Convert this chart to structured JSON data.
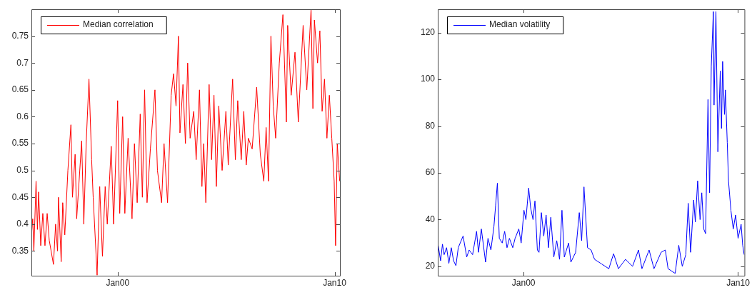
{
  "chart_data": [
    {
      "type": "line",
      "xlim": [
        "1996-01-10",
        "2010-04-01"
      ],
      "xticks": [
        {
          "value": "2000-01-01",
          "label": "Jan00"
        },
        {
          "value": "2010-01-01",
          "label": "Jan10"
        }
      ],
      "ylim": [
        0.304,
        0.8
      ],
      "yticks": [
        0.35,
        0.4,
        0.45,
        0.5,
        0.55,
        0.6,
        0.65,
        0.7,
        0.75
      ],
      "grid": false,
      "legend": "top left",
      "marker": "none",
      "line_style": "solid",
      "x": [
        "1996-01-10",
        "1996-02-01",
        "1996-02-20",
        "1996-03-28",
        "1996-04-20",
        "1996-05-10",
        "1996-06-15",
        "1996-07-20",
        "1996-08-25",
        "1996-10-01",
        "1996-11-05",
        "1997-01-15",
        "1997-02-20",
        "1997-03-25",
        "1997-04-10",
        "1997-05-25",
        "1997-06-20",
        "1997-07-25",
        "1997-09-15",
        "1997-11-05",
        "1997-12-01",
        "1998-01-15",
        "1998-02-10",
        "1998-05-05",
        "1998-06-10",
        "1998-07-20",
        "1998-09-05",
        "1998-10-20",
        "1998-11-15",
        "1999-01-20",
        "1999-03-05",
        "1999-04-20",
        "1999-06-05",
        "1999-07-10",
        "1999-09-15",
        "1999-10-25",
        "2000-01-01",
        "2000-02-05",
        "2000-03-25",
        "2000-05-01",
        "2000-06-25",
        "2000-08-30",
        "2000-10-10",
        "2000-11-25",
        "2001-01-15",
        "2001-02-20",
        "2001-03-30",
        "2001-05-10",
        "2001-07-05",
        "2001-09-20",
        "2001-11-01",
        "2002-01-10",
        "2002-02-20",
        "2002-04-20",
        "2002-06-20",
        "2002-07-30",
        "2002-09-10",
        "2002-10-20",
        "2002-11-15",
        "2003-01-05",
        "2003-02-15",
        "2003-03-25",
        "2003-05-05",
        "2003-07-05",
        "2003-08-15",
        "2003-10-10",
        "2003-11-20",
        "2003-12-20",
        "2004-01-25",
        "2004-03-20",
        "2004-05-01",
        "2004-06-10",
        "2004-07-20",
        "2004-08-30",
        "2004-10-25",
        "2004-12-28",
        "2005-02-05",
        "2005-04-20",
        "2005-06-05",
        "2005-07-15",
        "2005-09-12",
        "2005-10-25",
        "2005-12-05",
        "2006-01-10",
        "2006-03-15",
        "2006-05-30",
        "2006-07-30",
        "2006-09-27",
        "2006-11-05",
        "2006-12-15",
        "2007-01-25",
        "2007-03-05",
        "2007-04-15",
        "2007-06-15",
        "2007-08-15",
        "2007-10-12",
        "2007-11-03",
        "2008-01-01",
        "2008-03-05",
        "2008-04-30",
        "2008-07-20",
        "2008-09-20",
        "2008-12-01",
        "2009-01-01",
        "2009-01-26",
        "2009-03-20",
        "2009-04-28",
        "2009-06-05",
        "2009-07-15",
        "2009-08-25",
        "2009-10-05",
        "2009-11-15",
        "2009-12-25",
        "2010-01-18",
        "2010-02-15",
        "2010-03-10",
        "2010-03-28"
      ],
      "series": [
        {
          "name": "Median correlation",
          "color": "#ff0000",
          "values": [
            0.38,
            0.41,
            0.35,
            0.48,
            0.39,
            0.46,
            0.36,
            0.42,
            0.36,
            0.42,
            0.37,
            0.325,
            0.4,
            0.35,
            0.45,
            0.33,
            0.44,
            0.38,
            0.5,
            0.585,
            0.45,
            0.53,
            0.41,
            0.555,
            0.4,
            0.55,
            0.67,
            0.52,
            0.45,
            0.305,
            0.47,
            0.34,
            0.47,
            0.4,
            0.545,
            0.4,
            0.63,
            0.42,
            0.6,
            0.42,
            0.56,
            0.41,
            0.55,
            0.44,
            0.605,
            0.45,
            0.65,
            0.44,
            0.54,
            0.65,
            0.5,
            0.44,
            0.55,
            0.44,
            0.64,
            0.68,
            0.62,
            0.75,
            0.57,
            0.66,
            0.55,
            0.7,
            0.56,
            0.61,
            0.52,
            0.65,
            0.47,
            0.55,
            0.44,
            0.66,
            0.52,
            0.64,
            0.47,
            0.62,
            0.5,
            0.61,
            0.51,
            0.67,
            0.52,
            0.63,
            0.52,
            0.61,
            0.51,
            0.56,
            0.54,
            0.655,
            0.53,
            0.48,
            0.58,
            0.48,
            0.75,
            0.62,
            0.56,
            0.7,
            0.79,
            0.59,
            0.77,
            0.64,
            0.72,
            0.59,
            0.77,
            0.65,
            0.8,
            0.615,
            0.78,
            0.7,
            0.76,
            0.61,
            0.67,
            0.56,
            0.64,
            0.56,
            0.48,
            0.36,
            0.55,
            0.51,
            0.48
          ]
        }
      ]
    },
    {
      "type": "line",
      "xlim": [
        "1996-01-01",
        "2010-04-20"
      ],
      "xticks": [
        {
          "value": "2000-01-01",
          "label": "Jan00"
        },
        {
          "value": "2010-01-01",
          "label": "Jan10"
        }
      ],
      "ylim": [
        16,
        130
      ],
      "yticks": [
        20,
        40,
        60,
        80,
        100,
        120
      ],
      "grid": false,
      "legend": "top left",
      "marker": "none",
      "line_style": "solid",
      "x": [
        "1996-01-08",
        "1996-02-18",
        "1996-03-21",
        "1996-04-18",
        "1996-05-30",
        "1996-07-08",
        "1996-08-18",
        "1996-09-26",
        "1996-11-05",
        "1996-12-15",
        "1997-03-07",
        "1997-05-08",
        "1997-06-18",
        "1997-08-16",
        "1997-10-23",
        "1997-11-24",
        "1998-01-12",
        "1998-03-25",
        "1998-05-05",
        "1998-06-24",
        "1998-08-14",
        "1998-09-12",
        "1998-10-12",
        "1998-11-14",
        "1999-01-03",
        "1999-02-13",
        "1999-03-25",
        "1999-05-05",
        "1999-07-01",
        "1999-08-10",
        "1999-10-12",
        "1999-11-21",
        "2000-01-08",
        "2000-02-10",
        "2000-03-28",
        "2000-05-01",
        "2000-06-10",
        "2000-07-13",
        "2000-08-23",
        "2000-09-20",
        "2000-10-30",
        "2000-12-10",
        "2001-01-19",
        "2001-02-28",
        "2001-04-09",
        "2001-05-30",
        "2001-07-19",
        "2001-09-05",
        "2001-10-16",
        "2001-11-25",
        "2002-02-06",
        "2002-03-17",
        "2002-06-06",
        "2002-08-07",
        "2002-09-16",
        "2002-10-26",
        "2002-12-25",
        "2003-02-24",
        "2003-04-24",
        "2003-08-24",
        "2003-12-23",
        "2004-03-13",
        "2004-06-03",
        "2004-10-01",
        "2005-01-30",
        "2005-05-11",
        "2005-07-09",
        "2005-11-08",
        "2006-01-30",
        "2006-05-31",
        "2006-08-11",
        "2006-09-27",
        "2007-01-26",
        "2007-03-28",
        "2007-05-27",
        "2007-07-26",
        "2007-09-05",
        "2007-10-16",
        "2007-12-07",
        "2008-01-04",
        "2008-02-13",
        "2008-03-25",
        "2008-04-23",
        "2008-05-26",
        "2008-06-27",
        "2008-08-07",
        "2008-09-03",
        "2008-10-02",
        "2008-11-06",
        "2008-11-18",
        "2008-12-20",
        "2009-01-22",
        "2009-03-04",
        "2009-03-25",
        "2009-04-13",
        "2009-05-15",
        "2009-05-30",
        "2009-07-01",
        "2009-07-22",
        "2009-09-01",
        "2009-10-11",
        "2009-11-20",
        "2010-01-01",
        "2010-02-22",
        "2010-03-21",
        "2010-04-15"
      ],
      "series": [
        {
          "name": "Median volatility",
          "color": "#0000ff",
          "values": [
            29,
            22.4,
            29.5,
            25,
            28,
            21.3,
            28,
            22.4,
            20.3,
            28,
            33,
            24,
            27,
            25,
            35,
            26,
            36,
            21.8,
            32,
            27,
            37,
            46,
            55.6,
            32,
            30,
            35,
            28,
            32,
            28,
            32,
            36,
            30,
            44,
            40,
            53.5,
            45,
            40,
            48,
            27,
            26,
            43,
            33,
            42,
            28,
            41,
            24,
            31,
            23,
            44,
            24,
            30,
            21.8,
            26,
            43,
            31,
            54,
            28,
            27,
            23,
            21,
            19,
            25.4,
            19,
            23,
            20,
            27,
            19,
            27,
            19,
            26,
            27,
            19,
            17,
            29,
            20,
            25,
            47,
            26,
            48.4,
            39,
            56.6,
            40,
            51.5,
            36,
            34,
            91.4,
            51.5,
            105.7,
            129,
            89,
            129,
            69,
            103.6,
            79,
            107.7,
            85,
            95.5,
            73,
            56.6,
            44,
            36,
            42,
            32,
            38,
            29,
            25
          ]
        }
      ]
    }
  ]
}
